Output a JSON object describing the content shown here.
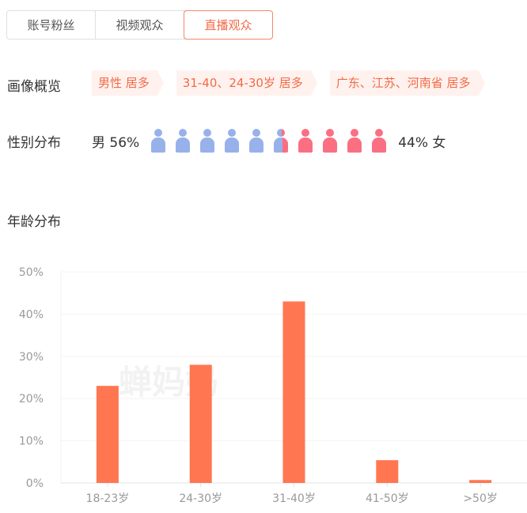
{
  "tabs": [
    {
      "label": "账号粉丝",
      "active": false
    },
    {
      "label": "视频观众",
      "active": false
    },
    {
      "label": "直播观众",
      "active": true
    }
  ],
  "portrait": {
    "label": "画像概览",
    "tags": [
      "男性 居多",
      "31-40、24-30岁 居多",
      "广东、江苏、河南省 居多"
    ]
  },
  "gender": {
    "label": "性别分布",
    "male_label": "男 56%",
    "female_label": "44% 女",
    "male_percent": 56,
    "female_percent": 44,
    "male_color": "#98b1ea",
    "female_color": "#fb6f83",
    "icon": "person-icon"
  },
  "age": {
    "label": "年龄分布"
  },
  "watermark": "蝉妈妈",
  "chart_data": {
    "type": "bar",
    "categories": [
      "18-23岁",
      "24-30岁",
      "31-40岁",
      "41-50岁",
      ">50岁"
    ],
    "values": [
      23,
      28,
      43,
      5.4,
      0.7
    ],
    "ylim": [
      0,
      50
    ],
    "yticks": [
      "0%",
      "10%",
      "20%",
      "30%",
      "40%",
      "50%"
    ],
    "grid": true,
    "color": "#ff7650"
  }
}
